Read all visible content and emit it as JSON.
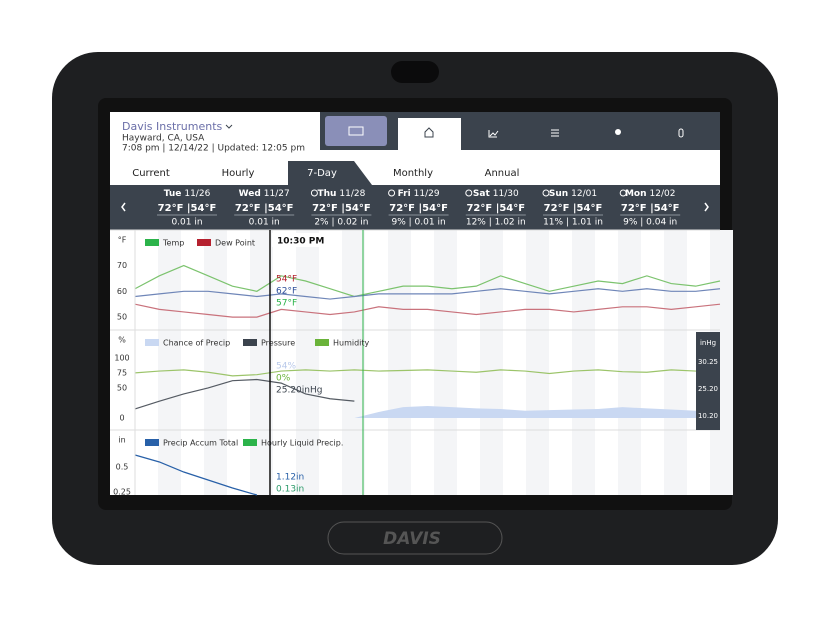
{
  "device": {
    "logo": "DAVIS"
  },
  "header": {
    "station": "Davis Instruments",
    "location": "Hayward, CA, USA",
    "status": "7:08 pm | 12/14/22 | Updated: 12:05 pm"
  },
  "tabs": [
    "Current",
    "Hourly",
    "7-Day",
    "Monthly",
    "Annual"
  ],
  "active_tab": 2,
  "forecast": [
    {
      "day": "Tue",
      "date": "11/26",
      "temps": "72°F |54°F",
      "precip": "0.01 in",
      "sunny": false
    },
    {
      "day": "Wed",
      "date": "11/27",
      "temps": "72°F |54°F",
      "precip": "0.01 in",
      "sunny": false
    },
    {
      "day": "Thu",
      "date": "11/28",
      "temps": "72°F |54°F",
      "precip": "2% | 0.02 in",
      "sunny": true
    },
    {
      "day": "Fri",
      "date": "11/29",
      "temps": "72°F |54°F",
      "precip": "9% | 0.01 in",
      "sunny": true
    },
    {
      "day": "Sat",
      "date": "11/30",
      "temps": "72°F |54°F",
      "precip": "12% | 1.02 in",
      "sunny": true
    },
    {
      "day": "Sun",
      "date": "12/01",
      "temps": "72°F |54°F",
      "precip": "11% | 1.01 in",
      "sunny": true
    },
    {
      "day": "Mon",
      "date": "12/02",
      "temps": "72°F |54°F",
      "precip": "9% | 0.04 in",
      "sunny": true
    }
  ],
  "charts": {
    "cursor_time": "10:30 PM",
    "panels": [
      {
        "unit": "°F",
        "ylim": [
          45,
          83
        ],
        "yticks": [
          70,
          60,
          50
        ],
        "legend": [
          {
            "name": "Temp",
            "color": "#2bb34a"
          },
          {
            "name": "Dew Point",
            "color": "#b5212f"
          }
        ],
        "lines": [
          {
            "color": "#7cc36e",
            "values": [
              61,
              66,
              70,
              66,
              62,
              60,
              66,
              64,
              61,
              58,
              60,
              62,
              62,
              61,
              62,
              66,
              63,
              60,
              62,
              64,
              63,
              66,
              63,
              62,
              64
            ]
          },
          {
            "color": "#6f86b8",
            "values": [
              58,
              59,
              60,
              60,
              59,
              58,
              59,
              58,
              57,
              58,
              59,
              59,
              59,
              59,
              60,
              61,
              60,
              59,
              60,
              61,
              60,
              61,
              60,
              60,
              61
            ]
          },
          {
            "color": "#c9727c",
            "values": [
              55,
              53,
              52,
              51,
              50,
              50,
              53,
              52,
              51,
              52,
              54,
              53,
              53,
              52,
              51,
              52,
              53,
              53,
              52,
              53,
              54,
              54,
              53,
              54,
              55
            ]
          }
        ],
        "readouts": [
          {
            "text": "54°F",
            "color": "#b5212f"
          },
          {
            "text": "62°F",
            "color": "#2e4f9a"
          },
          {
            "text": "57°F",
            "color": "#2bb34a"
          }
        ]
      },
      {
        "unit": "%",
        "ylim": [
          -20,
          143
        ],
        "yticks": [
          100,
          75,
          50,
          0
        ],
        "legend": [
          {
            "name": "Chance of Precip",
            "color": "#c9d8f2"
          },
          {
            "name": "Pressure",
            "color": "#3b434d"
          },
          {
            "name": "Humidity",
            "color": "#6ab33a"
          }
        ],
        "area": {
          "color": "#c9d8f2",
          "values": [
            0,
            0,
            0,
            0,
            0,
            0,
            0,
            0,
            0,
            0,
            10,
            18,
            20,
            18,
            16,
            15,
            12,
            13,
            14,
            15,
            18,
            16,
            14,
            12,
            10
          ]
        },
        "lines": [
          {
            "color": "#9cc46a",
            "values": [
              75,
              78,
              80,
              76,
              70,
              72,
              78,
              80,
              78,
              80,
              78,
              79,
              80,
              78,
              76,
              80,
              78,
              74,
              78,
              80,
              77,
              76,
              80,
              78,
              79
            ]
          },
          {
            "color": "#555b63",
            "values": [
              15,
              28,
              40,
              50,
              62,
              64,
              58,
              40,
              32,
              28
            ]
          }
        ],
        "right_axis": {
          "unit": "inHg",
          "labels": [
            "30.25",
            "25.20",
            "10.20"
          ]
        },
        "readouts": [
          {
            "text": "54%",
            "color": "#b9c9ea"
          },
          {
            "text": "0%",
            "color": "#6ab33a"
          },
          {
            "text": "25.20inHg",
            "color": "#3b434d"
          }
        ]
      },
      {
        "unit": "in",
        "ylim": [
          0.22,
          0.85
        ],
        "yticks": [
          0.5,
          0.25
        ],
        "legend": [
          {
            "name": "Precip Accum Total",
            "color": "#2860a8"
          },
          {
            "name": "Hourly Liquid Precip.",
            "color": "#2bb34a"
          }
        ],
        "lines": [
          {
            "color": "#2860a8",
            "values": [
              0.62,
              0.55,
              0.45,
              0.37,
              0.29,
              0.22
            ]
          }
        ],
        "readouts": [
          {
            "text": "1.12in",
            "color": "#2860a8"
          },
          {
            "text": "0.13in",
            "color": "#2b9a6a"
          }
        ]
      }
    ]
  }
}
